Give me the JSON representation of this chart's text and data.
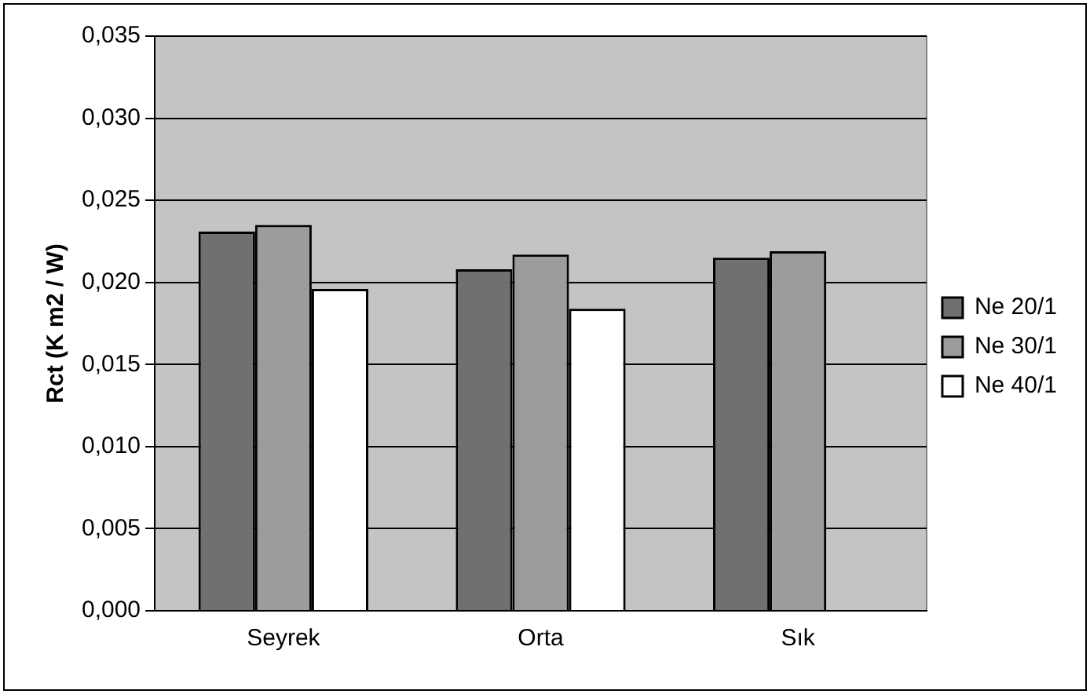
{
  "chart_data": {
    "type": "bar",
    "ylabel": "Rct (K m2 / W)",
    "categories": [
      "Seyrek",
      "Orta",
      "Sık"
    ],
    "series": [
      {
        "name": "Ne 20/1",
        "color": "#707070",
        "values": [
          0.0231,
          0.0208,
          0.0215
        ]
      },
      {
        "name": "Ne 30/1",
        "color": "#9c9c9c",
        "values": [
          0.0235,
          0.0217,
          0.0219
        ]
      },
      {
        "name": "Ne 40/1",
        "color": "#ffffff",
        "values": [
          0.0196,
          0.0184,
          null
        ]
      }
    ],
    "ylim": [
      0,
      0.035
    ],
    "yticks": [
      {
        "value": 0,
        "label": "0,000"
      },
      {
        "value": 0.005,
        "label": "0,005"
      },
      {
        "value": 0.01,
        "label": "0,010"
      },
      {
        "value": 0.015,
        "label": "0,015"
      },
      {
        "value": 0.02,
        "label": "0,020"
      },
      {
        "value": 0.025,
        "label": "0,025"
      },
      {
        "value": 0.03,
        "label": "0,030"
      },
      {
        "value": 0.035,
        "label": "0,035"
      }
    ],
    "grid": "y",
    "legend": "right"
  }
}
